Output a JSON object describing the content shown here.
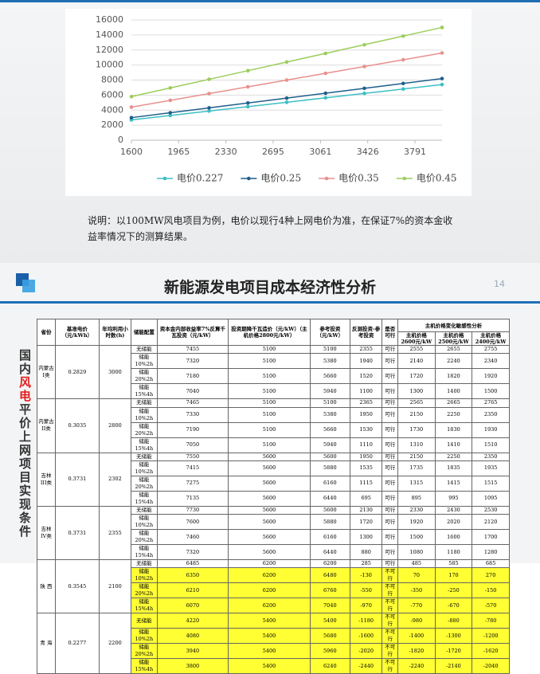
{
  "chart_data": {
    "type": "line",
    "x": [
      1600,
      1900,
      2200,
      2500,
      2800,
      3100,
      3400,
      3700,
      4000
    ],
    "xlim": [
      1600,
      4000
    ],
    "xticks": [
      1600,
      1965,
      2330,
      2695,
      3061,
      3426,
      3791
    ],
    "ylim": [
      0,
      16000
    ],
    "yticks": [
      0,
      2000,
      4000,
      6000,
      8000,
      10000,
      12000,
      14000,
      16000
    ],
    "grid": true,
    "legend": "bottom",
    "series": [
      {
        "name": "电价0.227",
        "color": "#3cbfc4",
        "values": [
          2700,
          3290,
          3880,
          4460,
          5050,
          5640,
          6230,
          6810,
          7400
        ]
      },
      {
        "name": "电价0.25",
        "color": "#1f5f8b",
        "values": [
          3000,
          3650,
          4300,
          4950,
          5600,
          6250,
          6900,
          7550,
          8200
        ]
      },
      {
        "name": "电价0.35",
        "color": "#e8908e",
        "values": [
          4400,
          5300,
          6200,
          7100,
          8000,
          8900,
          9800,
          10700,
          11600
        ]
      },
      {
        "name": "电价0.45",
        "color": "#9ccd5c",
        "values": [
          5800,
          6950,
          8100,
          9250,
          10400,
          11550,
          12700,
          13850,
          15000
        ]
      }
    ]
  },
  "note": "说明：以100MW风电项目为例，电价以现行4种上网电价为准，在保证7%的资本金收益率情况下的测算结果。",
  "slide": {
    "title": "新能源发电项目成本经济性分析",
    "page": "14",
    "side_title": [
      "国内",
      "风电",
      "平价上网项目实现条件"
    ]
  },
  "table": {
    "header": [
      "省份",
      "基准电价（元/kWh）",
      "年均利用小时数(h)",
      "储能配置",
      "资本金内部收益率7%反算千瓦投资（元/kW）",
      "投资期降千瓦造价（元/kW）（主机价格2800元/kW）",
      "参考投资（元/kW）",
      "反测投资-参考投资",
      "是否可行"
    ],
    "group_header": "主机价格变化敏感性分析",
    "sub_header": [
      "主机价格2600元/kW",
      "主机价格2500元/kW",
      "主机价格2400元/kW"
    ],
    "groups": [
      {
        "cells": [
          "内蒙古I类",
          "0.2829",
          "3000"
        ],
        "rows": [
          {
            "cells": [
              "无储能",
              "7455",
              "5100",
              "5100",
              "2355",
              "可行",
              "2555",
              "2655",
              "2755"
            ],
            "highlight": false
          },
          {
            "cells": [
              "储能10%2h",
              "7320",
              "5100",
              "5380",
              "1940",
              "可行",
              "2140",
              "2240",
              "2340"
            ],
            "highlight": false
          },
          {
            "cells": [
              "储能20%2h",
              "7180",
              "5100",
              "5660",
              "1520",
              "可行",
              "1720",
              "1820",
              "1920"
            ],
            "highlight": false
          },
          {
            "cells": [
              "储能15%4h",
              "7040",
              "5100",
              "5940",
              "1100",
              "可行",
              "1300",
              "1400",
              "1500"
            ],
            "highlight": false
          }
        ]
      },
      {
        "cells": [
          "内蒙古II类",
          "0.3035",
          "2800"
        ],
        "rows": [
          {
            "cells": [
              "无储能",
              "7465",
              "5100",
              "5100",
              "2365",
              "可行",
              "2565",
              "2665",
              "2765"
            ],
            "highlight": false
          },
          {
            "cells": [
              "储能10%2h",
              "7330",
              "5100",
              "5380",
              "1950",
              "可行",
              "2150",
              "2250",
              "2350"
            ],
            "highlight": false
          },
          {
            "cells": [
              "储能20%2h",
              "7190",
              "5100",
              "5660",
              "1530",
              "可行",
              "1730",
              "1830",
              "1930"
            ],
            "highlight": false
          },
          {
            "cells": [
              "储能15%4h",
              "7050",
              "5100",
              "5940",
              "1110",
              "可行",
              "1310",
              "1410",
              "1510"
            ],
            "highlight": false
          }
        ]
      },
      {
        "cells": [
          "吉林III类",
          "0.3731",
          "2302"
        ],
        "rows": [
          {
            "cells": [
              "无储能",
              "7550",
              "5600",
              "5600",
              "1950",
              "可行",
              "2150",
              "2250",
              "2350"
            ],
            "highlight": false
          },
          {
            "cells": [
              "储能10%2h",
              "7415",
              "5600",
              "5880",
              "1535",
              "可行",
              "1735",
              "1835",
              "1935"
            ],
            "highlight": false
          },
          {
            "cells": [
              "储能20%2h",
              "7275",
              "5600",
              "6160",
              "1115",
              "可行",
              "1315",
              "1415",
              "1515"
            ],
            "highlight": false
          },
          {
            "cells": [
              "储能15%4h",
              "7135",
              "5600",
              "6440",
              "695",
              "可行",
              "895",
              "995",
              "1095"
            ],
            "highlight": false
          }
        ]
      },
      {
        "cells": [
          "吉林IV类",
          "0.3731",
          "2355"
        ],
        "rows": [
          {
            "cells": [
              "无储能",
              "7730",
              "5600",
              "5600",
              "2130",
              "可行",
              "2330",
              "2430",
              "2530"
            ],
            "highlight": false
          },
          {
            "cells": [
              "储能10%2h",
              "7600",
              "5600",
              "5880",
              "1720",
              "可行",
              "1920",
              "2020",
              "2120"
            ],
            "highlight": false
          },
          {
            "cells": [
              "储能20%2h",
              "7460",
              "5600",
              "6160",
              "1300",
              "可行",
              "1500",
              "1600",
              "1700"
            ],
            "highlight": false
          },
          {
            "cells": [
              "储能15%4h",
              "7320",
              "5600",
              "6440",
              "880",
              "可行",
              "1080",
              "1180",
              "1280"
            ],
            "highlight": false
          }
        ]
      },
      {
        "cells": [
          "陕 西",
          "0.3545",
          "2100"
        ],
        "rows": [
          {
            "cells": [
              "无储能",
              "6485",
              "6200",
              "6200",
              "285",
              "可行",
              "485",
              "585",
              "685"
            ],
            "highlight": false
          },
          {
            "cells": [
              "储能10%2h",
              "6350",
              "6200",
              "6480",
              "-130",
              "不可行",
              "70",
              "170",
              "270"
            ],
            "highlight": true
          },
          {
            "cells": [
              "储能20%2h",
              "6210",
              "6200",
              "6760",
              "-550",
              "不可行",
              "-350",
              "-250",
              "-150"
            ],
            "highlight": true
          },
          {
            "cells": [
              "储能15%4h",
              "6070",
              "6200",
              "7040",
              "-970",
              "不可行",
              "-770",
              "-670",
              "-570"
            ],
            "highlight": true
          }
        ]
      },
      {
        "cells": [
          "青 海",
          "0.2277",
          "2200"
        ],
        "rows": [
          {
            "cells": [
              "无储能",
              "4220",
              "5400",
              "5400",
              "-1180",
              "不可行",
              "-980",
              "-880",
              "-780"
            ],
            "highlight": true
          },
          {
            "cells": [
              "储能10%2h",
              "4080",
              "5400",
              "5680",
              "-1600",
              "不可行",
              "-1400",
              "-1300",
              "-1200"
            ],
            "highlight": true
          },
          {
            "cells": [
              "储能20%2h",
              "3940",
              "5400",
              "5960",
              "-2020",
              "不可行",
              "-1820",
              "-1720",
              "-1620"
            ],
            "highlight": true
          },
          {
            "cells": [
              "储能15%4h",
              "3800",
              "5400",
              "6240",
              "-2440",
              "不可行",
              "-2240",
              "-2140",
              "-2040"
            ],
            "highlight": true
          }
        ]
      }
    ]
  }
}
